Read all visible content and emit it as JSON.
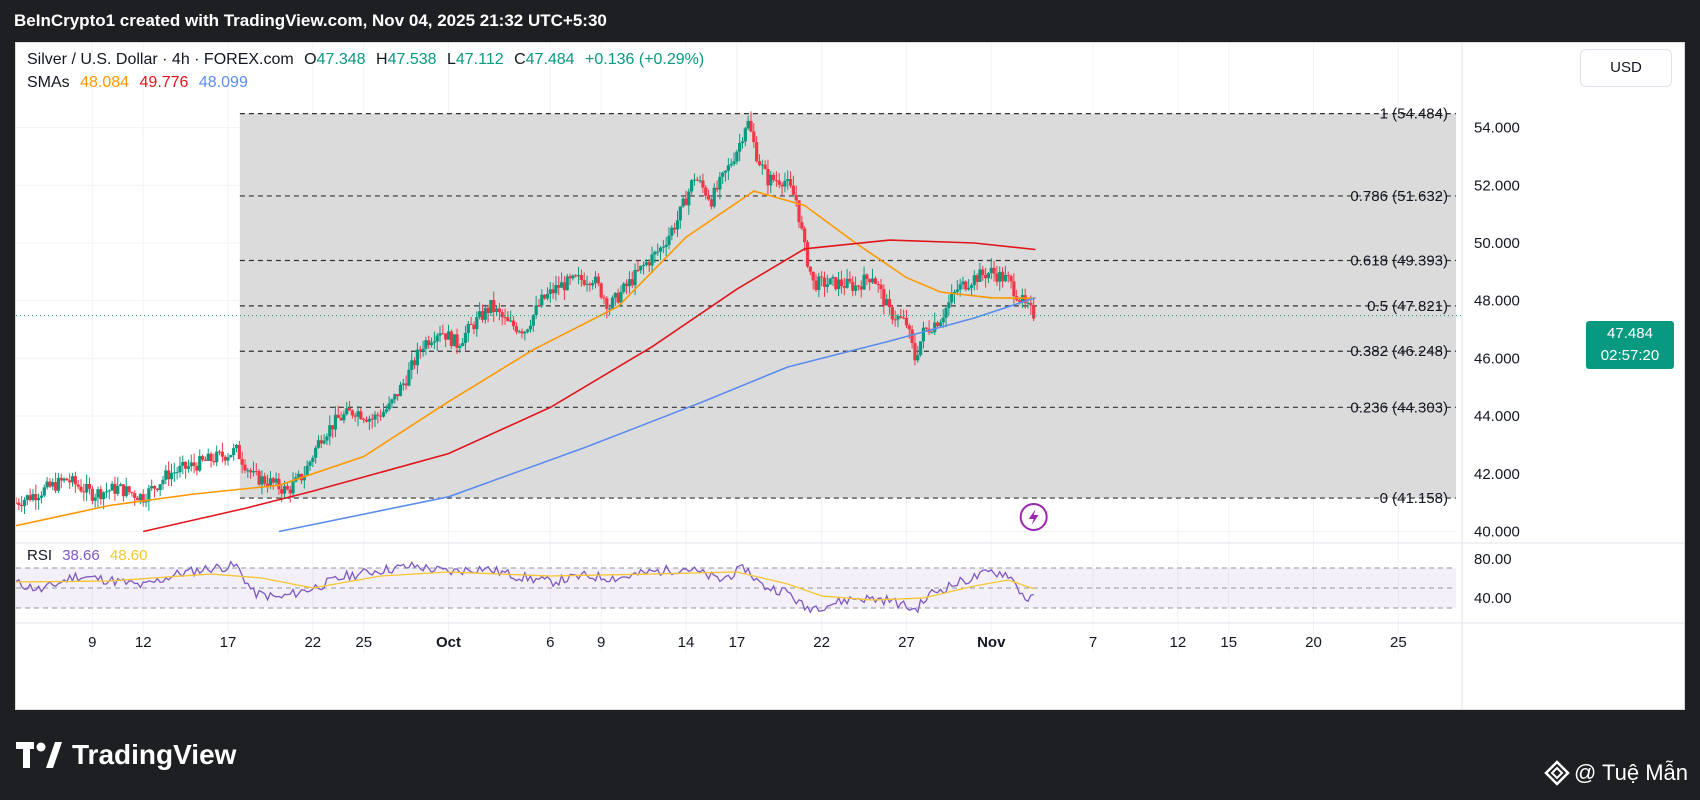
{
  "header": {
    "title": "BeInCrypto1 created with TradingView.com, Nov 04, 2025 21:32 UTC+5:30"
  },
  "legend": {
    "symbol": "Silver / U.S. Dollar · 4h · FOREX.com",
    "open_label": "O",
    "open": "47.348",
    "high_label": "H",
    "high": "47.538",
    "low_label": "L",
    "low": "47.112",
    "close_label": "C",
    "close": "47.484",
    "change": "+0.136 (+0.29%)",
    "sma_label": "SMAs",
    "sma1": "48.084",
    "sma2": "49.776",
    "sma3": "48.099",
    "rsi_label": "RSI",
    "rsi1": "38.66",
    "rsi2": "48.60"
  },
  "currency_button": "USD",
  "last_price": {
    "value": "47.484",
    "countdown": "02:57:20"
  },
  "footer": {
    "brand": "TradingView",
    "credit": "@ Tuệ Mẫn"
  },
  "colors": {
    "up": "#089981",
    "down": "#f23645",
    "sma_fast": "#ff9800",
    "sma_mid": "#e0161c",
    "sma_slow": "#5b8def",
    "rsi": "#7e57c2",
    "rsi_ma": "#f7c632",
    "fib_zone": "#d9d9d9"
  },
  "icons": {
    "brand_logo": "tradingview-logo-icon",
    "alert": "lightning-icon",
    "credit": "diamond-icon"
  },
  "chart_data": {
    "type": "candlestick",
    "title": "Silver / U.S. Dollar · 4h · FOREX.com",
    "price_axis": {
      "min": 39.6,
      "max": 55.2,
      "ticks": [
        "54.000",
        "52.000",
        "50.000",
        "48.000",
        "46.000",
        "44.000",
        "42.000",
        "40.000"
      ]
    },
    "x_axis": {
      "labels": [
        "9",
        "12",
        "17",
        "22",
        "25",
        "Oct",
        "6",
        "9",
        "14",
        "17",
        "22",
        "27",
        "Nov",
        "7",
        "12",
        "15",
        "20",
        "25"
      ],
      "label_days": [
        9,
        12,
        17,
        22,
        25,
        30,
        36,
        39,
        44,
        47,
        52,
        57,
        62,
        68,
        73,
        76,
        81,
        86
      ],
      "start_day": 4.5,
      "end_day": 89.4
    },
    "fibonacci": {
      "levels": [
        {
          "ratio": "1",
          "price": 54.484,
          "label": "1 (54.484)"
        },
        {
          "ratio": "0.786",
          "price": 51.632,
          "label": "0.786 (51.632)"
        },
        {
          "ratio": "0.618",
          "price": 49.393,
          "label": "0.618 (49.393)"
        },
        {
          "ratio": "0.5",
          "price": 47.821,
          "label": "0.5 (47.821)"
        },
        {
          "ratio": "0.382",
          "price": 46.248,
          "label": "0.382 (46.248)"
        },
        {
          "ratio": "0.236",
          "price": 44.303,
          "label": "0.236 (44.303)"
        },
        {
          "ratio": "0",
          "price": 41.158,
          "label": "0 (41.158)"
        }
      ],
      "start_day": 17.7
    },
    "price_path": [
      [
        4.5,
        41.0
      ],
      [
        6.0,
        41.4
      ],
      [
        7.5,
        41.8
      ],
      [
        9.0,
        41.3
      ],
      [
        10.5,
        41.5
      ],
      [
        12.0,
        41.2
      ],
      [
        13.5,
        42.0
      ],
      [
        15.0,
        42.3
      ],
      [
        16.5,
        42.6
      ],
      [
        17.5,
        42.8
      ],
      [
        18.5,
        41.9
      ],
      [
        19.5,
        41.7
      ],
      [
        20.5,
        41.4
      ],
      [
        21.5,
        42.0
      ],
      [
        22.5,
        43.3
      ],
      [
        23.5,
        43.9
      ],
      [
        24.5,
        44.2
      ],
      [
        25.5,
        43.9
      ],
      [
        26.5,
        44.3
      ],
      [
        27.5,
        45.3
      ],
      [
        28.5,
        46.5
      ],
      [
        29.5,
        47.0
      ],
      [
        30.5,
        46.5
      ],
      [
        31.5,
        47.2
      ],
      [
        32.5,
        47.8
      ],
      [
        33.5,
        47.2
      ],
      [
        34.5,
        47.0
      ],
      [
        35.5,
        48.0
      ],
      [
        36.5,
        48.5
      ],
      [
        37.5,
        48.7
      ],
      [
        38.5,
        48.8
      ],
      [
        39.5,
        47.8
      ],
      [
        40.5,
        48.5
      ],
      [
        41.5,
        49.2
      ],
      [
        42.5,
        49.8
      ],
      [
        43.5,
        50.8
      ],
      [
        44.5,
        52.3
      ],
      [
        45.5,
        51.5
      ],
      [
        46.5,
        52.6
      ],
      [
        47.2,
        53.5
      ],
      [
        47.6,
        54.3
      ],
      [
        48.2,
        53.0
      ],
      [
        48.8,
        52.2
      ],
      [
        49.8,
        52.2
      ],
      [
        50.5,
        51.5
      ],
      [
        51.0,
        49.8
      ],
      [
        51.5,
        48.6
      ],
      [
        52.0,
        48.6
      ],
      [
        53.0,
        48.6
      ],
      [
        54.0,
        48.5
      ],
      [
        55.0,
        48.9
      ],
      [
        56.0,
        47.6
      ],
      [
        57.0,
        47.2
      ],
      [
        57.5,
        46.0
      ],
      [
        58.0,
        46.9
      ],
      [
        59.0,
        47.4
      ],
      [
        60.0,
        48.4
      ],
      [
        61.0,
        48.8
      ],
      [
        62.0,
        49.0
      ],
      [
        63.0,
        48.7
      ],
      [
        64.0,
        47.8
      ],
      [
        64.6,
        47.484
      ]
    ],
    "series": [
      {
        "name": "SMAs",
        "value": "48.084",
        "values": [
          [
            4.5,
            40.2
          ],
          [
            10,
            40.9
          ],
          [
            15,
            41.3
          ],
          [
            20,
            41.6
          ],
          [
            25,
            42.6
          ],
          [
            30,
            44.5
          ],
          [
            35,
            46.3
          ],
          [
            40,
            47.8
          ],
          [
            44,
            50.2
          ],
          [
            48,
            51.8
          ],
          [
            51,
            51.3
          ],
          [
            54,
            50.0
          ],
          [
            57,
            48.8
          ],
          [
            59,
            48.3
          ],
          [
            62,
            48.1
          ],
          [
            64.6,
            48.084
          ]
        ]
      },
      {
        "name": "SMAs",
        "value": "49.776",
        "values": [
          [
            12,
            40.0
          ],
          [
            18,
            40.8
          ],
          [
            22,
            41.4
          ],
          [
            30,
            42.7
          ],
          [
            36,
            44.3
          ],
          [
            42,
            46.4
          ],
          [
            47,
            48.4
          ],
          [
            51,
            49.8
          ],
          [
            56,
            50.1
          ],
          [
            61,
            50.0
          ],
          [
            64.6,
            49.776
          ]
        ]
      },
      {
        "name": "SMAs",
        "value": "48.099",
        "values": [
          [
            20,
            40.0
          ],
          [
            30,
            41.2
          ],
          [
            38,
            42.9
          ],
          [
            45,
            44.5
          ],
          [
            50,
            45.7
          ],
          [
            56,
            46.6
          ],
          [
            61,
            47.4
          ],
          [
            64.6,
            48.099
          ]
        ]
      }
    ],
    "rsi": {
      "ylim": [
        20,
        90
      ],
      "tick": "80.00",
      "tick2": "40.00",
      "bands": [
        70,
        50,
        30
      ],
      "rsi_path": [
        [
          4.5,
          55
        ],
        [
          6,
          48
        ],
        [
          8,
          62
        ],
        [
          10,
          58
        ],
        [
          12,
          52
        ],
        [
          14,
          64
        ],
        [
          16,
          70
        ],
        [
          17.5,
          72
        ],
        [
          18.5,
          45
        ],
        [
          20,
          40
        ],
        [
          22,
          50
        ],
        [
          24,
          62
        ],
        [
          26,
          68
        ],
        [
          28,
          72
        ],
        [
          30,
          66
        ],
        [
          32,
          70
        ],
        [
          34,
          62
        ],
        [
          36,
          56
        ],
        [
          38,
          62
        ],
        [
          40,
          60
        ],
        [
          42,
          66
        ],
        [
          44,
          70
        ],
        [
          46,
          58
        ],
        [
          47.5,
          70
        ],
        [
          48.5,
          52
        ],
        [
          50,
          46
        ],
        [
          51,
          30
        ],
        [
          52,
          32
        ],
        [
          54,
          40
        ],
        [
          56,
          38
        ],
        [
          57.5,
          28
        ],
        [
          58.5,
          45
        ],
        [
          60,
          55
        ],
        [
          62,
          66
        ],
        [
          63,
          64
        ],
        [
          64,
          40
        ],
        [
          64.6,
          38.66
        ]
      ],
      "ma_path": [
        [
          4.5,
          56
        ],
        [
          10,
          57
        ],
        [
          16,
          64
        ],
        [
          19,
          60
        ],
        [
          22,
          50
        ],
        [
          26,
          62
        ],
        [
          30,
          66
        ],
        [
          36,
          62
        ],
        [
          42,
          64
        ],
        [
          47,
          66
        ],
        [
          50,
          54
        ],
        [
          52,
          42
        ],
        [
          55,
          38
        ],
        [
          58,
          40
        ],
        [
          61,
          52
        ],
        [
          63,
          58
        ],
        [
          64.6,
          48.6
        ]
      ]
    }
  }
}
